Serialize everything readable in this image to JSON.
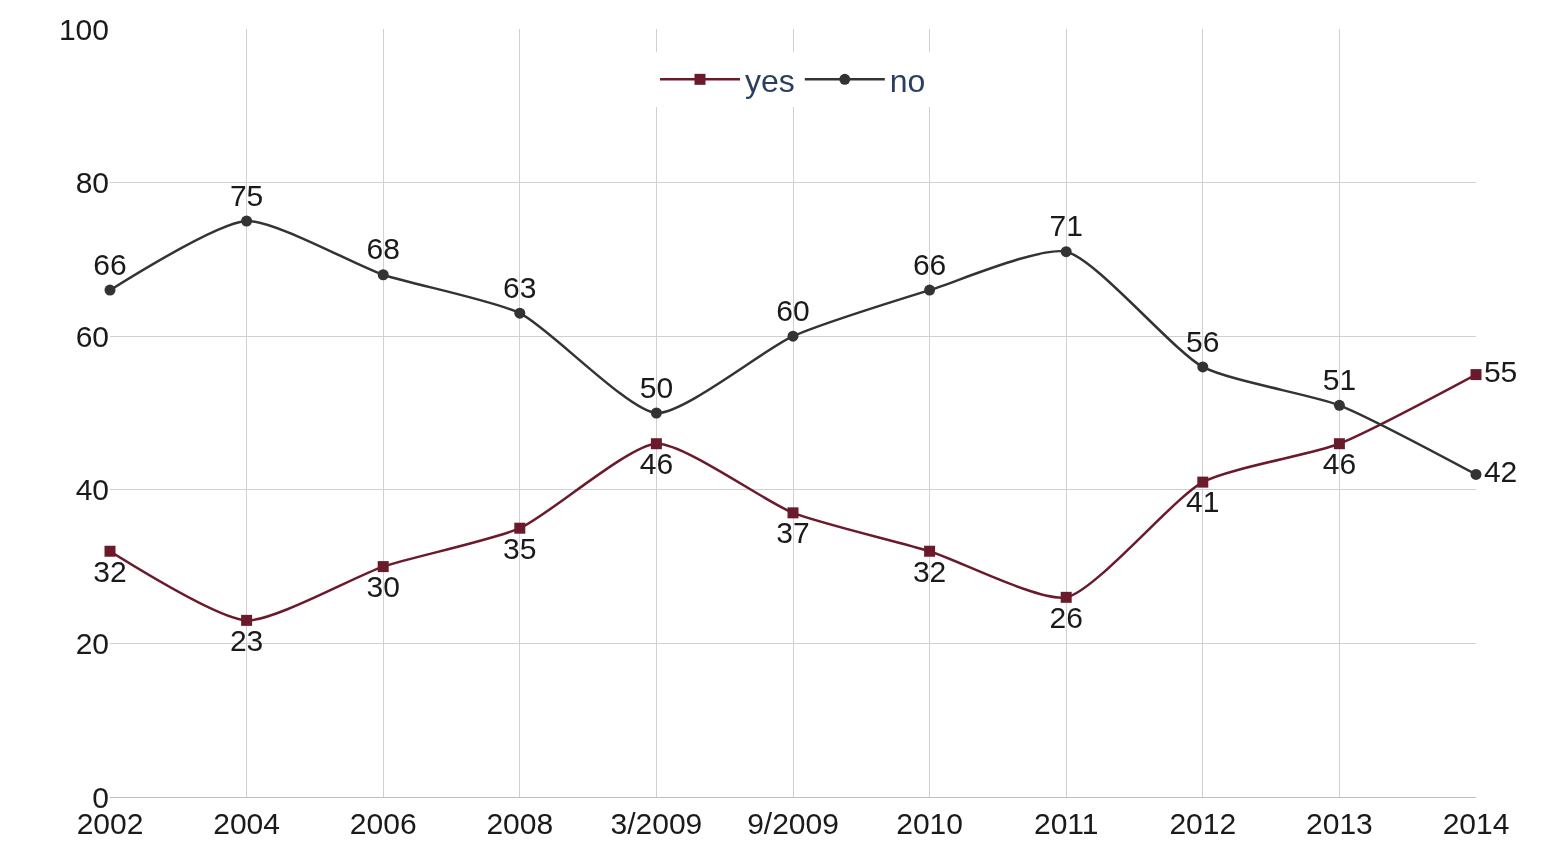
{
  "chart_data": {
    "type": "line",
    "categories": [
      "2002",
      "2004",
      "2006",
      "2008",
      "3/2009",
      "9/2009",
      "2010",
      "2011",
      "2012",
      "2013",
      "2014"
    ],
    "series": [
      {
        "name": "yes",
        "color": "#6b1a2b",
        "marker": "square",
        "values": [
          32,
          23,
          30,
          35,
          46,
          37,
          32,
          26,
          41,
          46,
          55
        ]
      },
      {
        "name": "no",
        "color": "#333333",
        "marker": "circle",
        "values": [
          66,
          75,
          68,
          63,
          50,
          60,
          66,
          71,
          56,
          51,
          42
        ]
      }
    ],
    "ylim": [
      0,
      100
    ],
    "yticks": [
      0,
      20,
      40,
      60,
      80,
      100
    ],
    "grid": true,
    "legend": "top",
    "data_labels": true
  }
}
